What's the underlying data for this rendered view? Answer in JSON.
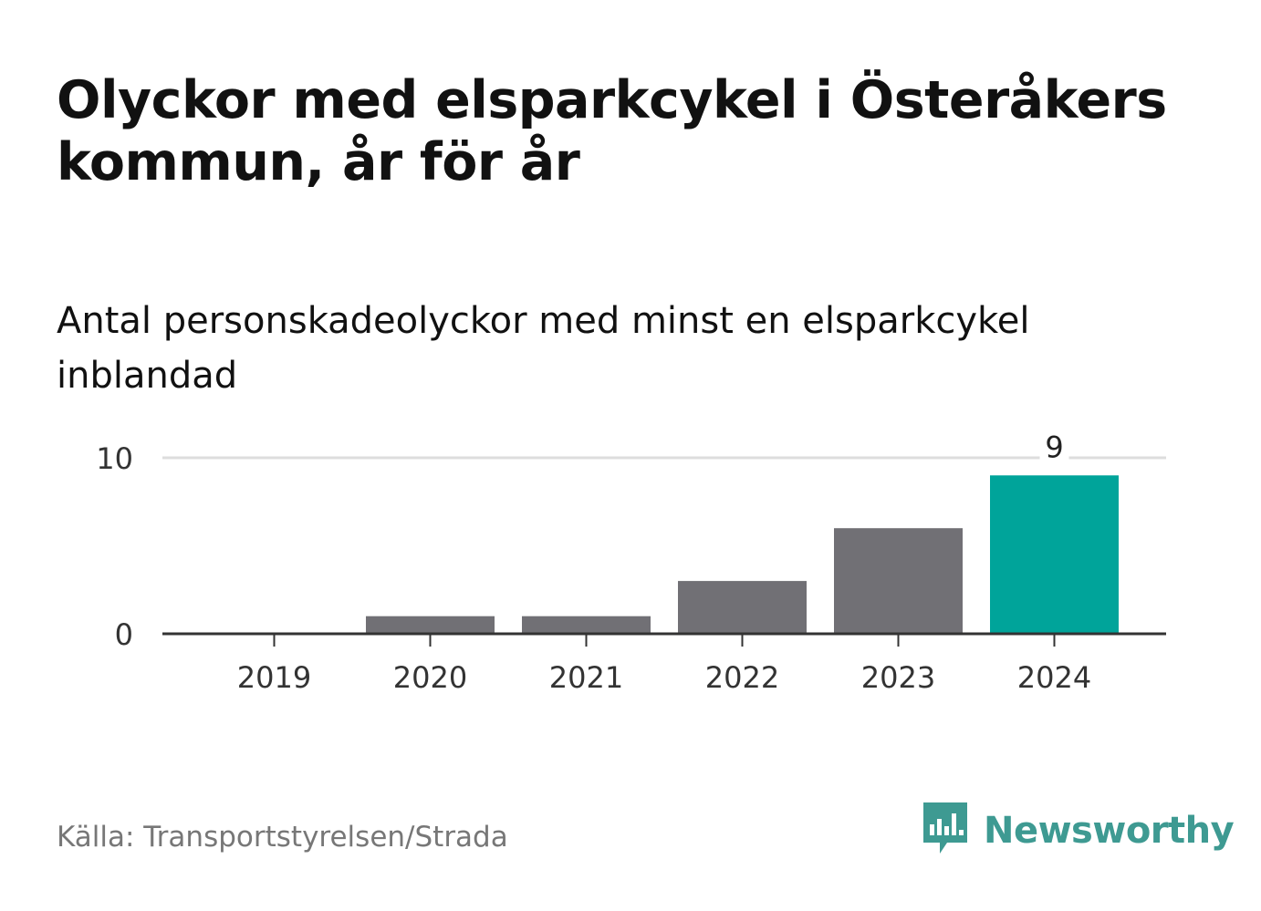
{
  "title": "Olyckor med elsparkcykel i Österåkers kommun, år för år",
  "subtitle": "Antal personskadeolyckor med minst en elsparkcykel inblandad",
  "source": "Källa: Transportstyrelsen/Strada",
  "brand": {
    "name": "Newsworthy",
    "color": "#3e9a92",
    "icon": "newsworthy-logo-icon"
  },
  "colors": {
    "bar_default": "#717075",
    "bar_highlight": "#00a49a",
    "grid": "#dddddd",
    "axis": "#333333"
  },
  "chart_data": {
    "type": "bar",
    "categories": [
      "2019",
      "2020",
      "2021",
      "2022",
      "2023",
      "2024"
    ],
    "values": [
      0,
      1,
      1,
      3,
      6,
      9
    ],
    "highlight_index": 5,
    "data_labels": [
      {
        "category": "2024",
        "text": "9"
      }
    ],
    "yticks": [
      0,
      10
    ],
    "ylim": [
      0,
      10
    ],
    "grid": true,
    "xlabel": "",
    "ylabel": ""
  }
}
